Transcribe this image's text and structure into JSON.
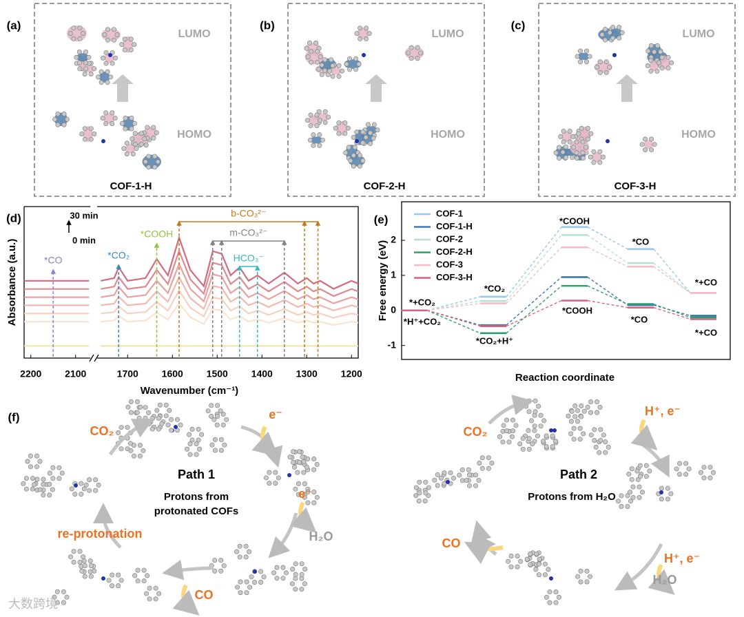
{
  "panels": [
    {
      "label": "(a)",
      "lumo": "LUMO",
      "homo": "HOMO",
      "name": "COF-1-H"
    },
    {
      "label": "(b)",
      "lumo": "LUMO",
      "homo": "HOMO",
      "name": "COF-2-H"
    },
    {
      "label": "(c)",
      "lumo": "LUMO",
      "homo": "HOMO",
      "name": "COF-3-H"
    }
  ],
  "chart_data": [
    {
      "type": "line",
      "panel_label": "(d)",
      "xlabel": "Wavenumber (cm⁻¹)",
      "ylabel": "Absorbance (a.u.)",
      "time_labels": [
        "30 min",
        "0 min"
      ],
      "xlim": [
        2215,
        1185
      ],
      "x_break": [
        2070,
        1765
      ],
      "ylim": [
        0,
        10
      ],
      "xticks": [
        2200,
        2100,
        1700,
        1600,
        1500,
        1400,
        1300,
        1200
      ],
      "x": [
        2215,
        2140,
        2070,
        2069,
        1760,
        1730,
        1720,
        1700,
        1660,
        1635,
        1610,
        1585,
        1560,
        1530,
        1510,
        1490,
        1470,
        1450,
        1430,
        1410,
        1385,
        1350,
        1320,
        1300,
        1285,
        1270,
        1240,
        1200,
        1185
      ],
      "annotations": [
        {
          "text": "*CO",
          "color": "#8a7fd0",
          "x": [
            2150
          ]
        },
        {
          "text": "*CO₂",
          "color": "#3a86c0",
          "x": [
            1720
          ]
        },
        {
          "text": "*COOH",
          "color": "#8cc63f",
          "x": [
            1635
          ]
        },
        {
          "text": "b-CO₃²⁻",
          "color": "#c07a1a",
          "x": [
            1585,
            1305,
            1275
          ]
        },
        {
          "text": "m-CO₃²⁻",
          "color": "#808080",
          "x": [
            1510,
            1490,
            1350
          ]
        },
        {
          "text": "HCO₃⁻",
          "color": "#30b8c8",
          "x": [
            1450,
            1410
          ]
        }
      ],
      "series": [
        {
          "color": "#f8e6a0",
          "values": [
            0.8,
            0.8,
            0.8,
            null,
            0.8,
            0.8,
            0.8,
            0.8,
            0.8,
            0.8,
            0.8,
            0.8,
            0.8,
            0.8,
            0.8,
            0.8,
            0.8,
            0.8,
            0.8,
            0.8,
            0.8,
            0.8,
            0.8,
            0.8,
            0.8,
            0.8,
            0.8,
            0.8,
            0.8
          ]
        },
        {
          "color": "#fbe3cf",
          "values": [
            2.4,
            2.4,
            2.4,
            null,
            2.4,
            2.48,
            2.78,
            2.4,
            2.48,
            3.0,
            2.55,
            3.6,
            2.7,
            2.25,
            3.23,
            3.15,
            2.55,
            2.78,
            2.4,
            2.55,
            2.33,
            2.63,
            2.33,
            2.48,
            2.33,
            2.4,
            2.18,
            2.4,
            2.33
          ]
        },
        {
          "color": "#f8d0c0",
          "values": [
            2.94,
            2.94,
            2.94,
            null,
            2.94,
            3.04,
            3.42,
            2.94,
            3.04,
            3.71,
            3.13,
            4.47,
            3.32,
            2.75,
            4.0,
            3.9,
            3.13,
            3.42,
            2.94,
            3.13,
            2.85,
            3.23,
            2.85,
            3.04,
            2.85,
            2.94,
            2.66,
            2.94,
            2.85
          ]
        },
        {
          "color": "#f2b8b0",
          "values": [
            3.48,
            3.48,
            3.48,
            null,
            3.48,
            3.6,
            4.06,
            3.48,
            3.6,
            4.41,
            3.72,
            5.34,
            3.95,
            3.25,
            4.76,
            4.64,
            3.72,
            4.06,
            3.48,
            3.72,
            3.37,
            3.83,
            3.37,
            3.6,
            3.37,
            3.48,
            3.14,
            3.48,
            3.37
          ]
        },
        {
          "color": "#e9a0a0",
          "values": [
            4.02,
            4.02,
            4.02,
            null,
            4.02,
            4.16,
            4.7,
            4.02,
            4.16,
            5.11,
            4.29,
            6.21,
            4.57,
            3.74,
            5.53,
            5.39,
            4.29,
            4.7,
            4.02,
            4.29,
            3.88,
            4.43,
            3.88,
            4.16,
            3.88,
            4.02,
            3.61,
            4.02,
            3.88
          ]
        },
        {
          "color": "#df8890",
          "values": [
            4.56,
            4.56,
            4.56,
            null,
            4.56,
            4.72,
            5.35,
            4.56,
            4.72,
            5.82,
            4.88,
            7.08,
            5.19,
            4.25,
            6.29,
            6.14,
            4.88,
            5.35,
            4.56,
            4.88,
            4.4,
            5.03,
            4.4,
            4.72,
            4.4,
            4.56,
            4.09,
            4.56,
            4.4
          ]
        },
        {
          "color": "#d26a7c",
          "values": [
            5.1,
            5.1,
            5.1,
            null,
            5.1,
            5.28,
            5.99,
            5.1,
            5.28,
            6.53,
            5.46,
            7.95,
            5.81,
            4.75,
            7.06,
            6.88,
            5.46,
            5.99,
            5.1,
            5.46,
            4.92,
            5.64,
            4.92,
            5.28,
            4.92,
            5.1,
            4.57,
            5.1,
            4.92
          ]
        }
      ]
    },
    {
      "type": "step",
      "panel_label": "(e)",
      "xlabel": "Reaction coordinate",
      "ylabel": "Free energy (eV)",
      "categories": [
        null,
        null,
        null,
        null,
        null
      ],
      "ylim": [
        -1.4,
        3.1
      ],
      "yticks": [
        -1,
        0,
        1,
        2
      ],
      "legend": "upper left",
      "annotations": [
        "*+CO₂",
        "*H⁺+CO₂",
        "*CO₂",
        "*CO₂+H⁺",
        "*COOH",
        "*COOH",
        "*CO",
        "*CO",
        "*+CO",
        "*+CO"
      ],
      "series": [
        {
          "name": "COF-1",
          "color": "#9ec5e6",
          "values": [
            0,
            0.39,
            2.38,
            1.75,
            0.5
          ]
        },
        {
          "name": "COF-1-H",
          "color": "#3a78b5",
          "values": [
            0,
            -0.42,
            0.95,
            0.15,
            -0.15
          ]
        },
        {
          "name": "COF-2",
          "color": "#b8e0d0",
          "values": [
            0,
            0.27,
            2.15,
            1.35,
            0.5
          ]
        },
        {
          "name": "COF-2-H",
          "color": "#2e9e6a",
          "values": [
            0,
            -0.65,
            0.7,
            0.18,
            -0.2
          ]
        },
        {
          "name": "COF-3",
          "color": "#f4bcc8",
          "values": [
            0,
            0.2,
            1.8,
            1.25,
            0.5
          ]
        },
        {
          "name": "COF-3-H",
          "color": "#d9607e",
          "values": [
            0,
            -0.45,
            0.28,
            0.08,
            -0.25
          ]
        }
      ]
    }
  ],
  "mechanism": {
    "label": "(f)",
    "path1": {
      "title": "Path 1",
      "subtitle": [
        "Protons from",
        "protonated COFs"
      ],
      "steps": [
        "CO₂",
        "e⁻",
        "e⁻",
        "H₂O",
        "CO",
        "re-protonation"
      ]
    },
    "path2": {
      "title": "Path 2",
      "subtitle": [
        "Protons from H₂O"
      ],
      "steps": [
        "CO₂",
        "H⁺, e⁻",
        "H⁺, e⁻",
        "H₂O",
        "CO"
      ]
    }
  },
  "watermark": "大数跨境"
}
